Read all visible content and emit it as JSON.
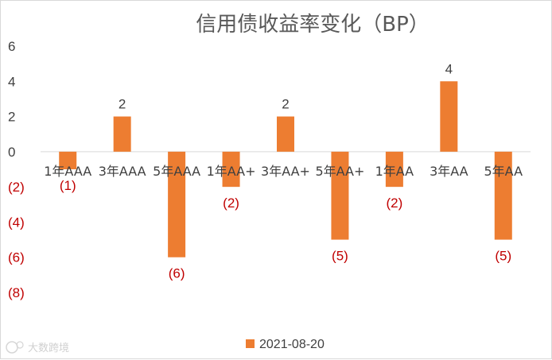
{
  "chart_data": {
    "type": "bar",
    "title": "信用债收益率变化（BP）",
    "categories": [
      "1年AAA",
      "3年AAA",
      "5年AAA",
      "1年AA+",
      "3年AA+",
      "5年AA+",
      "1年AA",
      "3年AA",
      "5年AA"
    ],
    "series": [
      {
        "name": "2021-08-20",
        "values": [
          -1,
          2,
          -6,
          -2,
          2,
          -5,
          -2,
          4,
          -5
        ]
      }
    ],
    "data_labels": [
      "(1)",
      "2",
      "(6)",
      "(2)",
      "2",
      "(5)",
      "(2)",
      "4",
      "(5)"
    ],
    "y_ticks": [
      6,
      4,
      2,
      0,
      -2,
      -4,
      -6,
      -8
    ],
    "y_tick_labels": [
      "6",
      "4",
      "2",
      "0",
      "(2)",
      "(4)",
      "(6)",
      "(8)"
    ],
    "ylim": [
      -8,
      6
    ],
    "xlabel": "",
    "ylabel": "",
    "grid": false,
    "legend_position": "bottom",
    "bar_color": "#ED7D31",
    "negative_label_color": "#C00000",
    "positive_label_color": "#404040"
  },
  "watermark": {
    "icon": "cfc-logo-icon",
    "text": "大数跨境"
  }
}
